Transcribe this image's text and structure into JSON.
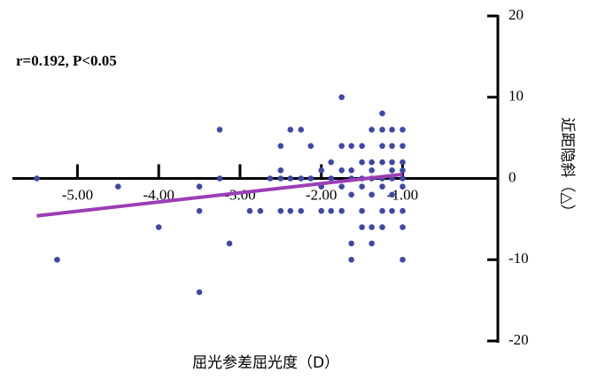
{
  "chart_data": {
    "type": "scatter",
    "annotation": "r=0.192, P<0.05",
    "xlabel": "屈光参差屈光度（D）",
    "ylabel": "近距隐斜（△）",
    "xlim": [
      -5.8,
      0.15
    ],
    "ylim": [
      -20,
      20
    ],
    "xticks": [
      {
        "value": -5,
        "label": "-5.00"
      },
      {
        "value": -4,
        "label": "-4.00"
      },
      {
        "value": -3,
        "label": "-3.00"
      },
      {
        "value": -2,
        "label": "-2.00"
      },
      {
        "value": -1,
        "label": "-1.00"
      }
    ],
    "yticks": [
      20,
      10,
      0,
      -10,
      -20
    ],
    "color": "#3f48a8",
    "x": [
      -5.5,
      -5.25,
      -4.5,
      -4,
      -3.5,
      -3.5,
      -3.5,
      -3.25,
      -3.25,
      -3.13,
      -2.88,
      -2.75,
      -2.63,
      -2.5,
      -2.5,
      -2.5,
      -2.5,
      -2.38,
      -2.38,
      -2.38,
      -2.25,
      -2.25,
      -2.25,
      -2.13,
      -2.13,
      -2,
      -2,
      -2,
      -1.88,
      -1.88,
      -1.88,
      -1.75,
      -1.75,
      -1.75,
      -1.75,
      -1.75,
      -1.63,
      -1.63,
      -1.63,
      -1.63,
      -1.63,
      -1.63,
      -1.5,
      -1.5,
      -1.5,
      -1.5,
      -1.5,
      -1.5,
      -1.38,
      -1.38,
      -1.38,
      -1.38,
      -1.38,
      -1.38,
      -1.38,
      -1.25,
      -1.25,
      -1.25,
      -1.25,
      -1.25,
      -1.25,
      -1.25,
      -1.25,
      -1.13,
      -1.13,
      -1.13,
      -1.13,
      -1.13,
      -1.13,
      -1.13,
      -1,
      -1,
      -1,
      -1,
      -1,
      -1,
      -1,
      -1,
      -1
    ],
    "values": [
      0,
      -10,
      -1,
      -6,
      -1,
      -4,
      -14,
      6,
      0,
      -8,
      -4,
      -4,
      0,
      4,
      1,
      0,
      -4,
      6,
      0,
      -4,
      6,
      0,
      -4,
      4,
      0,
      1,
      -1,
      -4,
      2,
      0,
      -4,
      10,
      4,
      1,
      -1,
      -4,
      4,
      1,
      0,
      -2,
      -8,
      -10,
      4,
      2,
      0,
      -1,
      -4,
      -6,
      6,
      2,
      1,
      0,
      -2,
      -6,
      -8,
      8,
      6,
      4,
      2,
      0,
      -1,
      -4,
      -6,
      6,
      4,
      2,
      1,
      0,
      -2,
      -4,
      6,
      4,
      2,
      1,
      0,
      -1,
      -4,
      -6,
      -10
    ],
    "trend": {
      "x": [
        -5.5,
        -1
      ],
      "y": [
        -4.6,
        0.5
      ],
      "color": "#9b3fb5"
    }
  }
}
